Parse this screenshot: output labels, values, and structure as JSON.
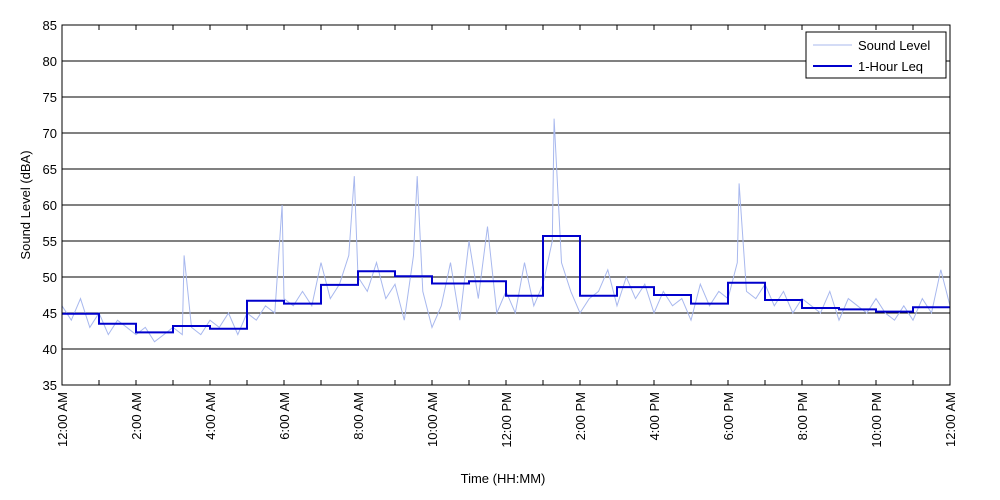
{
  "chart_data": {
    "type": "line",
    "xlabel": "Time (HH:MM)",
    "ylabel": "Sound Level (dBA)",
    "xlim": [
      0,
      24
    ],
    "ylim": [
      35,
      85
    ],
    "y_ticks": [
      35,
      40,
      45,
      50,
      55,
      60,
      65,
      70,
      75,
      80,
      85
    ],
    "x_ticks": [
      0,
      2,
      4,
      6,
      8,
      10,
      12,
      14,
      16,
      18,
      20,
      22,
      24
    ],
    "x_tick_labels": [
      "12:00 AM",
      "2:00 AM",
      "4:00 AM",
      "6:00 AM",
      "8:00 AM",
      "10:00 AM",
      "12:00 PM",
      "2:00 PM",
      "4:00 PM",
      "6:00 PM",
      "8:00 PM",
      "10:00 PM",
      "12:00 AM"
    ],
    "grid": "horizontal",
    "legend_position": "top-right",
    "series": [
      {
        "name": "Sound Level",
        "color": "#a8b8ee",
        "x": [
          0,
          0.25,
          0.5,
          0.75,
          1,
          1.25,
          1.5,
          1.75,
          2,
          2.25,
          2.5,
          2.75,
          3,
          3.25,
          3.3,
          3.5,
          3.75,
          4,
          4.25,
          4.5,
          4.75,
          5,
          5.25,
          5.5,
          5.75,
          5.95,
          6,
          6.25,
          6.5,
          6.75,
          7,
          7.25,
          7.5,
          7.75,
          7.9,
          8,
          8.25,
          8.5,
          8.75,
          9,
          9.25,
          9.5,
          9.6,
          9.75,
          10,
          10.25,
          10.5,
          10.75,
          11,
          11.25,
          11.5,
          11.75,
          12,
          12.25,
          12.5,
          12.75,
          13,
          13.25,
          13.3,
          13.5,
          13.75,
          14,
          14.25,
          14.5,
          14.75,
          15,
          15.25,
          15.5,
          15.75,
          16,
          16.25,
          16.5,
          16.75,
          17,
          17.25,
          17.5,
          17.75,
          18,
          18.25,
          18.3,
          18.5,
          18.75,
          19,
          19.25,
          19.5,
          19.75,
          20,
          20.25,
          20.5,
          20.75,
          21,
          21.25,
          21.5,
          21.75,
          22,
          22.25,
          22.5,
          22.75,
          23,
          23.25,
          23.5,
          23.75,
          24
        ],
        "values": [
          46,
          44,
          47,
          43,
          45,
          42,
          44,
          43,
          42,
          43,
          41,
          42,
          43,
          42,
          53,
          43,
          42,
          44,
          43,
          45,
          42,
          45,
          44,
          46,
          45,
          60,
          47,
          46,
          48,
          46,
          52,
          47,
          49,
          53,
          64,
          50,
          48,
          52,
          47,
          49,
          44,
          53,
          64,
          48,
          43,
          46,
          52,
          44,
          55,
          47,
          57,
          45,
          48,
          45,
          52,
          46,
          49,
          55,
          72,
          52,
          48,
          45,
          47,
          48,
          51,
          46,
          50,
          47,
          49,
          45,
          48,
          46,
          47,
          44,
          49,
          46,
          48,
          47,
          52,
          63,
          48,
          47,
          49,
          46,
          48,
          45,
          47,
          46,
          45,
          48,
          44,
          47,
          46,
          45,
          47,
          45,
          44,
          46,
          44,
          47,
          45,
          51,
          46
        ]
      },
      {
        "name": "1-Hour Leq",
        "color": "#0000cc",
        "hours": [
          0,
          1,
          2,
          3,
          4,
          5,
          6,
          7,
          8,
          9,
          10,
          11,
          12,
          13,
          14,
          15,
          16,
          17,
          18,
          19,
          20,
          21,
          22,
          23
        ],
        "values": [
          44.9,
          43.5,
          42.3,
          43.2,
          42.8,
          46.7,
          46.3,
          48.9,
          50.8,
          50.1,
          49.1,
          49.4,
          47.4,
          55.7,
          47.4,
          48.6,
          47.5,
          46.3,
          49.2,
          46.8,
          45.7,
          45.5,
          45.2,
          45.8
        ]
      }
    ]
  }
}
